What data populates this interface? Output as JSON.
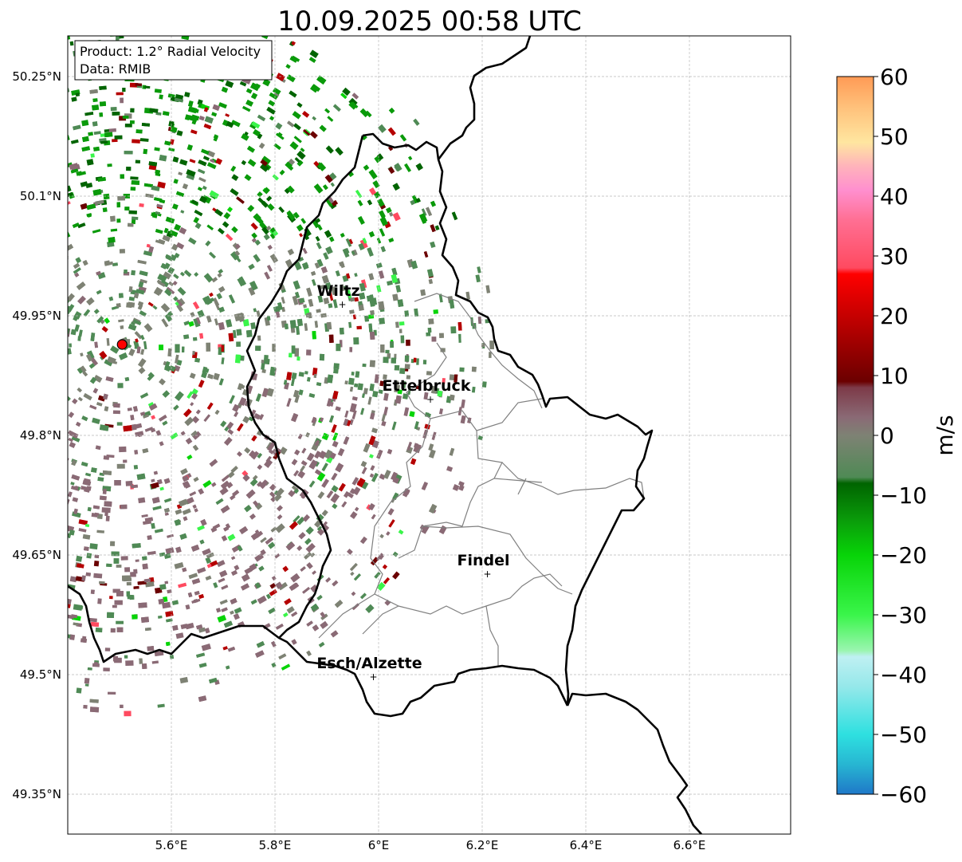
{
  "title": "10.09.2025 00:58 UTC",
  "info_box": {
    "product": "Product: 1.2° Radial Velocity",
    "data_source": "Data: RMIB"
  },
  "lat_ticks": [
    {
      "value": 50.25,
      "label": "50.25°N"
    },
    {
      "value": 50.1,
      "label": "50.1°N"
    },
    {
      "value": 49.95,
      "label": "49.95°N"
    },
    {
      "value": 49.8,
      "label": "49.8°N"
    },
    {
      "value": 49.65,
      "label": "49.65°N"
    },
    {
      "value": 49.5,
      "label": "49.5°N"
    },
    {
      "value": 49.35,
      "label": "49.35°N"
    }
  ],
  "lon_ticks": [
    {
      "value": 5.6,
      "label": "5.6°E"
    },
    {
      "value": 5.8,
      "label": "5.8°E"
    },
    {
      "value": 6.0,
      "label": "6°E"
    },
    {
      "value": 6.2,
      "label": "6.2°E"
    },
    {
      "value": 6.4,
      "label": "6.4°E"
    },
    {
      "value": 6.6,
      "label": "6.6°E"
    }
  ],
  "cities": [
    {
      "name": "Wiltz",
      "lon": 5.93,
      "lat": 49.965
    },
    {
      "name": "Ettelbruck",
      "lon": 6.1,
      "lat": 49.846
    },
    {
      "name": "Findel",
      "lon": 6.21,
      "lat": 49.627
    },
    {
      "name": "Esch/Alzette",
      "lon": 5.99,
      "lat": 49.498
    }
  ],
  "radar_site": {
    "lon": 5.505,
    "lat": 49.914
  },
  "colorbar": {
    "label": "m/s",
    "min": -60,
    "max": 60,
    "ticks": [
      {
        "value": 60,
        "label": "60"
      },
      {
        "value": 50,
        "label": "50"
      },
      {
        "value": 40,
        "label": "40"
      },
      {
        "value": 30,
        "label": "30"
      },
      {
        "value": 20,
        "label": "20"
      },
      {
        "value": 10,
        "label": "10"
      },
      {
        "value": 0,
        "label": "0"
      },
      {
        "value": -10,
        "label": "−10"
      },
      {
        "value": -20,
        "label": "−20"
      },
      {
        "value": -30,
        "label": "−30"
      },
      {
        "value": -40,
        "label": "−40"
      },
      {
        "value": -50,
        "label": "−50"
      },
      {
        "value": -60,
        "label": "−60"
      }
    ],
    "stops": [
      {
        "v": -60,
        "c": "#1f78c8"
      },
      {
        "v": -55,
        "c": "#27b6d2"
      },
      {
        "v": -50,
        "c": "#2ee0e0"
      },
      {
        "v": -42,
        "c": "#95e8ea"
      },
      {
        "v": -37,
        "c": "#bff0f2"
      },
      {
        "v": -36,
        "c": "#9af5b0"
      },
      {
        "v": -30,
        "c": "#3af54a"
      },
      {
        "v": -20,
        "c": "#08d408"
      },
      {
        "v": -14,
        "c": "#0a9a0a"
      },
      {
        "v": -8,
        "c": "#006400"
      },
      {
        "v": -7,
        "c": "#4f8a55"
      },
      {
        "v": 0,
        "c": "#7e8274"
      },
      {
        "v": 3,
        "c": "#8a6a75"
      },
      {
        "v": 8,
        "c": "#7d3a48"
      },
      {
        "v": 9,
        "c": "#6b0000"
      },
      {
        "v": 18,
        "c": "#b50000"
      },
      {
        "v": 27,
        "c": "#ff0000"
      },
      {
        "v": 28,
        "c": "#ff4a60"
      },
      {
        "v": 36,
        "c": "#ff6f93"
      },
      {
        "v": 41,
        "c": "#ff8fcf"
      },
      {
        "v": 45,
        "c": "#ffb3bb"
      },
      {
        "v": 49,
        "c": "#ffe6a0"
      },
      {
        "v": 55,
        "c": "#ffc07a"
      },
      {
        "v": 60,
        "c": "#ff9a55"
      }
    ]
  },
  "colors": {
    "border": "#000000",
    "canton_lines": "#808080",
    "grid": "#b8b8b8",
    "radar_marker": "#ff0000"
  }
}
